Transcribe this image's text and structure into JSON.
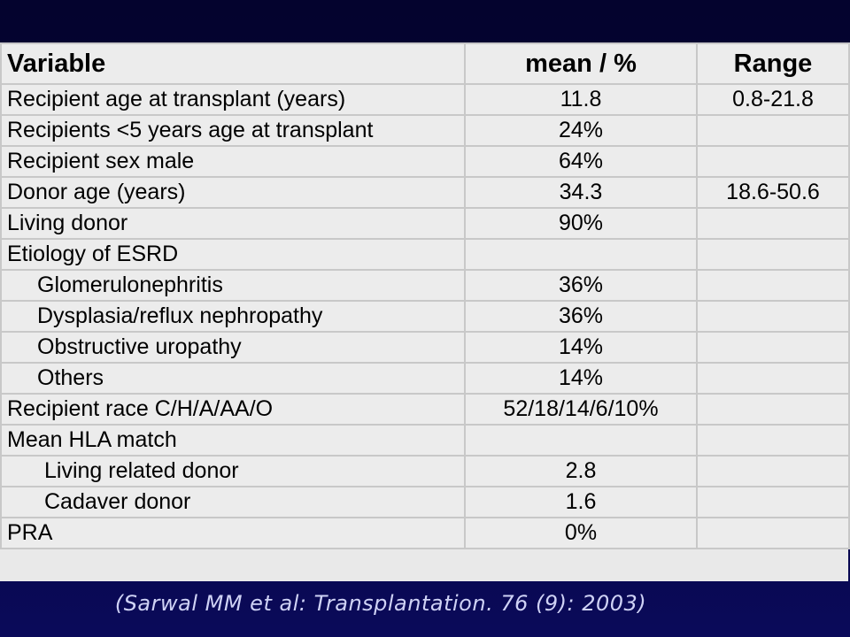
{
  "table": {
    "headers": [
      "Variable",
      "mean / %",
      "Range"
    ],
    "rows": [
      {
        "variable": "Recipient age at transplant (years)",
        "mean": "11.8",
        "range": "0.8-21.8"
      },
      {
        "variable": "Recipients <5 years age at transplant",
        "mean": "24%",
        "range": ""
      },
      {
        "variable": "Recipient sex male",
        "mean": "64%",
        "range": ""
      },
      {
        "variable": "Donor age (years)",
        "mean": "34.3",
        "range": "18.6-50.6"
      },
      {
        "variable": "Living donor",
        "mean": "90%",
        "range": ""
      },
      {
        "variable": "Etiology of ESRD",
        "mean": "",
        "range": ""
      },
      {
        "variable": "Glomerulonephritis",
        "mean": "36%",
        "range": ""
      },
      {
        "variable": "Dysplasia/reflux nephropathy",
        "mean": "36%",
        "range": ""
      },
      {
        "variable": "Obstructive uropathy",
        "mean": "14%",
        "range": ""
      },
      {
        "variable": "Others",
        "mean": "14%",
        "range": ""
      },
      {
        "variable": "Recipient race C/H/A/AA/O",
        "mean": "52/18/14/6/10%",
        "range": ""
      },
      {
        "variable": "Mean HLA match",
        "mean": "",
        "range": ""
      },
      {
        "variable": "Living related donor",
        "mean": "2.8",
        "range": ""
      },
      {
        "variable": "Cadaver donor",
        "mean": "1.6",
        "range": ""
      },
      {
        "variable": "PRA",
        "mean": "0%",
        "range": ""
      }
    ]
  },
  "citation": "(Sarwal MM et al: Transplantation. 76 (9): 2003)"
}
